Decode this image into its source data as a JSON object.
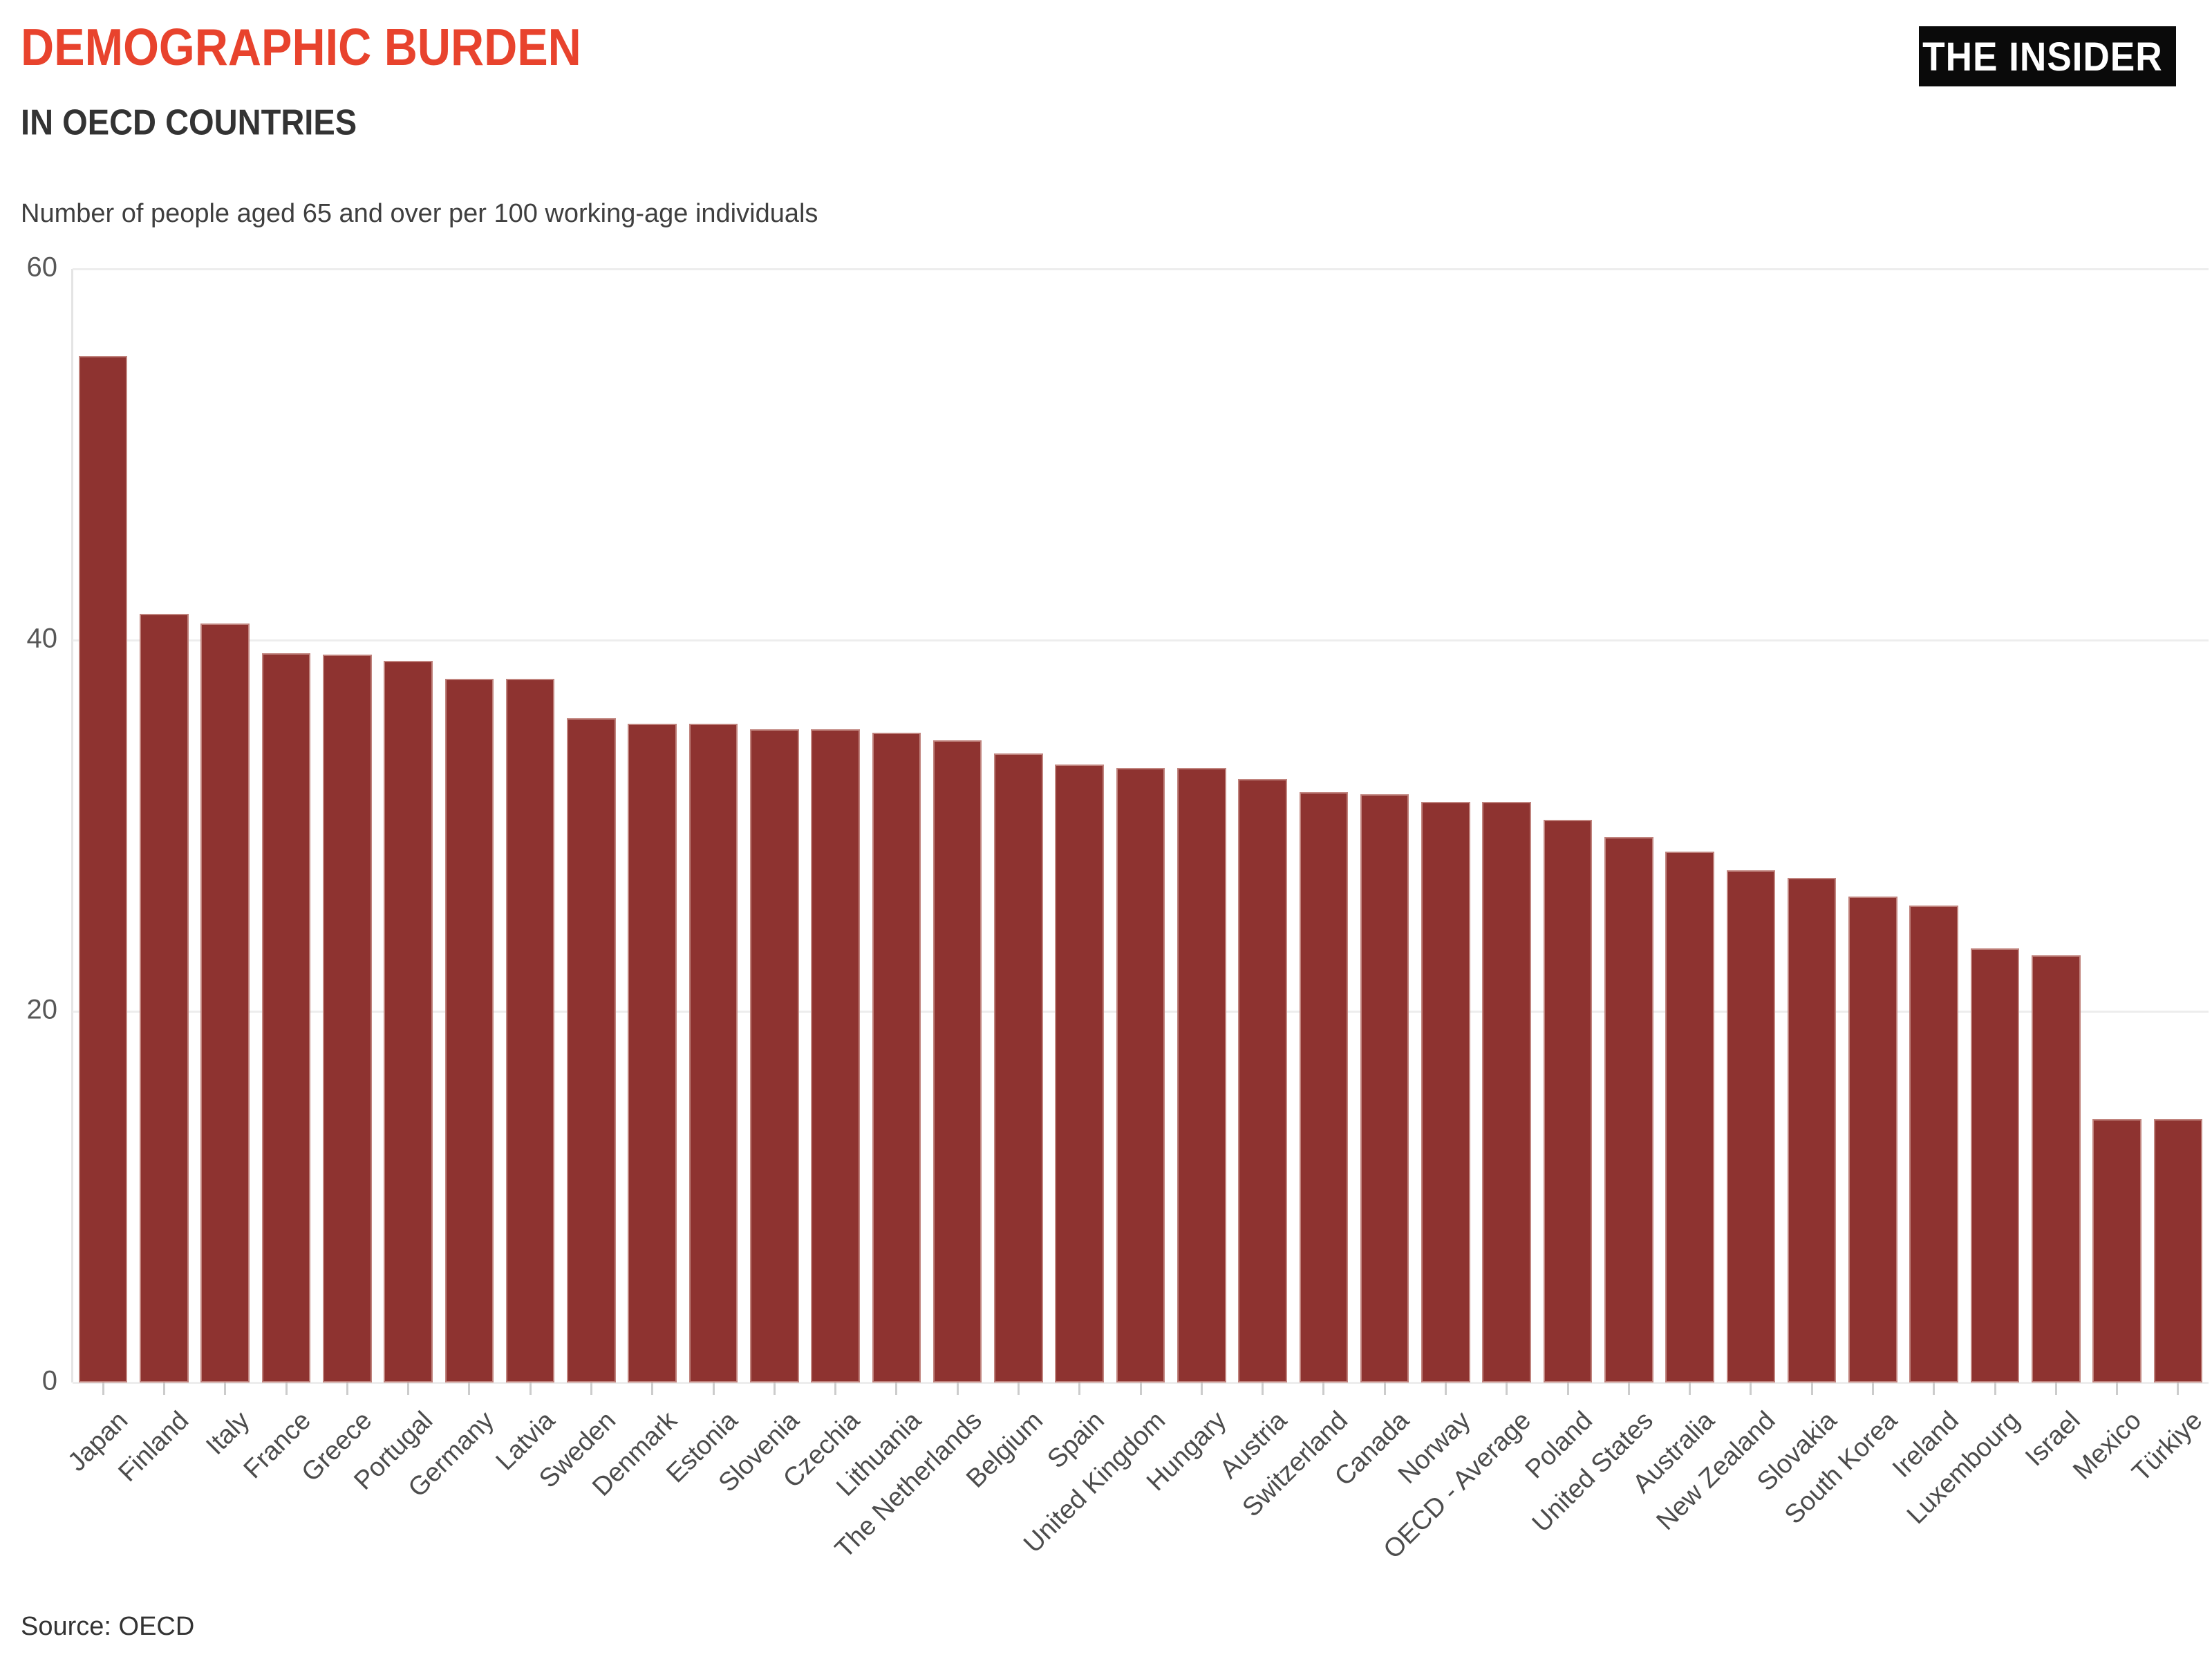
{
  "header": {
    "title": "DEMOGRAPHIC BURDEN",
    "subtitle": "IN OECD COUNTRIES",
    "note": "Number of people aged 65 and over per 100 working-age individuals",
    "logo_text": "THE INSIDER"
  },
  "footer": {
    "source": "Source: OECD"
  },
  "colors": {
    "title_accent": "#e8432d",
    "subtitle_text": "#333333",
    "bar_fill": "#8e3330",
    "bar_edge": "#e9c4be",
    "gridline": "#ededed",
    "axis_label_text": "#4c4c4c",
    "logo_bg": "#0a0a0a",
    "logo_text": "#ffffff"
  },
  "chart_data": {
    "type": "bar",
    "title": "DEMOGRAPHIC BURDEN IN OECD COUNTRIES",
    "subtitle_note": "Number of people aged 65 and over per 100 working-age individuals",
    "xlabel": "",
    "ylabel": "",
    "ylim": [
      0,
      60
    ],
    "yticks": [
      0,
      20,
      40,
      60
    ],
    "grid": "horizontal",
    "legend": "none",
    "bar_color": "#8e3330",
    "categories": [
      "Japan",
      "Finland",
      "Italy",
      "France",
      "Greece",
      "Portugal",
      "Germany",
      "Latvia",
      "Sweden",
      "Denmark",
      "Estonia",
      "Slovenia",
      "Czechia",
      "Lithuania",
      "The Netherlands",
      "Belgium",
      "Spain",
      "United Kingdom",
      "Hungary",
      "Austria",
      "Switzerland",
      "Canada",
      "Norway",
      "OECD - Average",
      "Poland",
      "United States",
      "Australia",
      "New Zealand",
      "Slovakia",
      "South Korea",
      "Ireland",
      "Luxembourg",
      "Israel",
      "Mexico",
      "Türkiye"
    ],
    "values": [
      55.3,
      41.4,
      40.9,
      39.3,
      39.2,
      38.9,
      37.9,
      37.9,
      35.8,
      35.5,
      35.5,
      35.2,
      35.2,
      35.0,
      34.6,
      33.9,
      33.3,
      33.1,
      33.1,
      32.5,
      31.8,
      31.7,
      31.3,
      31.3,
      30.3,
      29.4,
      28.6,
      27.6,
      27.2,
      26.2,
      25.7,
      23.4,
      23.0,
      14.2,
      14.2
    ]
  }
}
